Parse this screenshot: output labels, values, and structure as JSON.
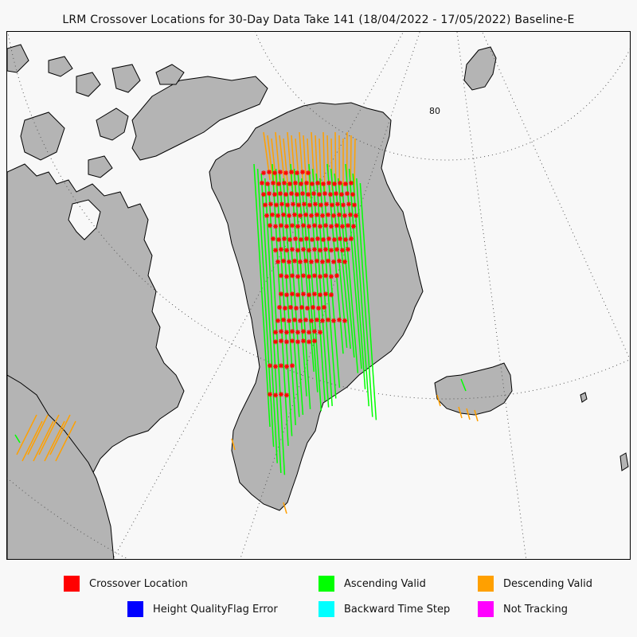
{
  "title": "LRM Crossover Locations for 30-Day Data Take 141 (18/04/2022 - 17/05/2022) Baseline-E",
  "map": {
    "projection": "polar-stereographic",
    "graticule_label": "80",
    "colors": {
      "ocean": "#f8f8f8",
      "land": "#b4b4b4",
      "coastline": "#000000",
      "graticule": "#555555"
    }
  },
  "legend": [
    {
      "id": "crossover",
      "label": "Crossover Location",
      "color": "#ff0000"
    },
    {
      "id": "ascending",
      "label": "Ascending Valid",
      "color": "#00ff00"
    },
    {
      "id": "descending",
      "label": "Descending Valid",
      "color": "#ffa000"
    },
    {
      "id": "height-flag",
      "label": "Height QualityFlag Error",
      "color": "#0000ff"
    },
    {
      "id": "backward",
      "label": "Backward Time Step",
      "color": "#00ffff"
    },
    {
      "id": "not-tracking",
      "label": "Not Tracking",
      "color": "#ff00ff"
    }
  ]
}
